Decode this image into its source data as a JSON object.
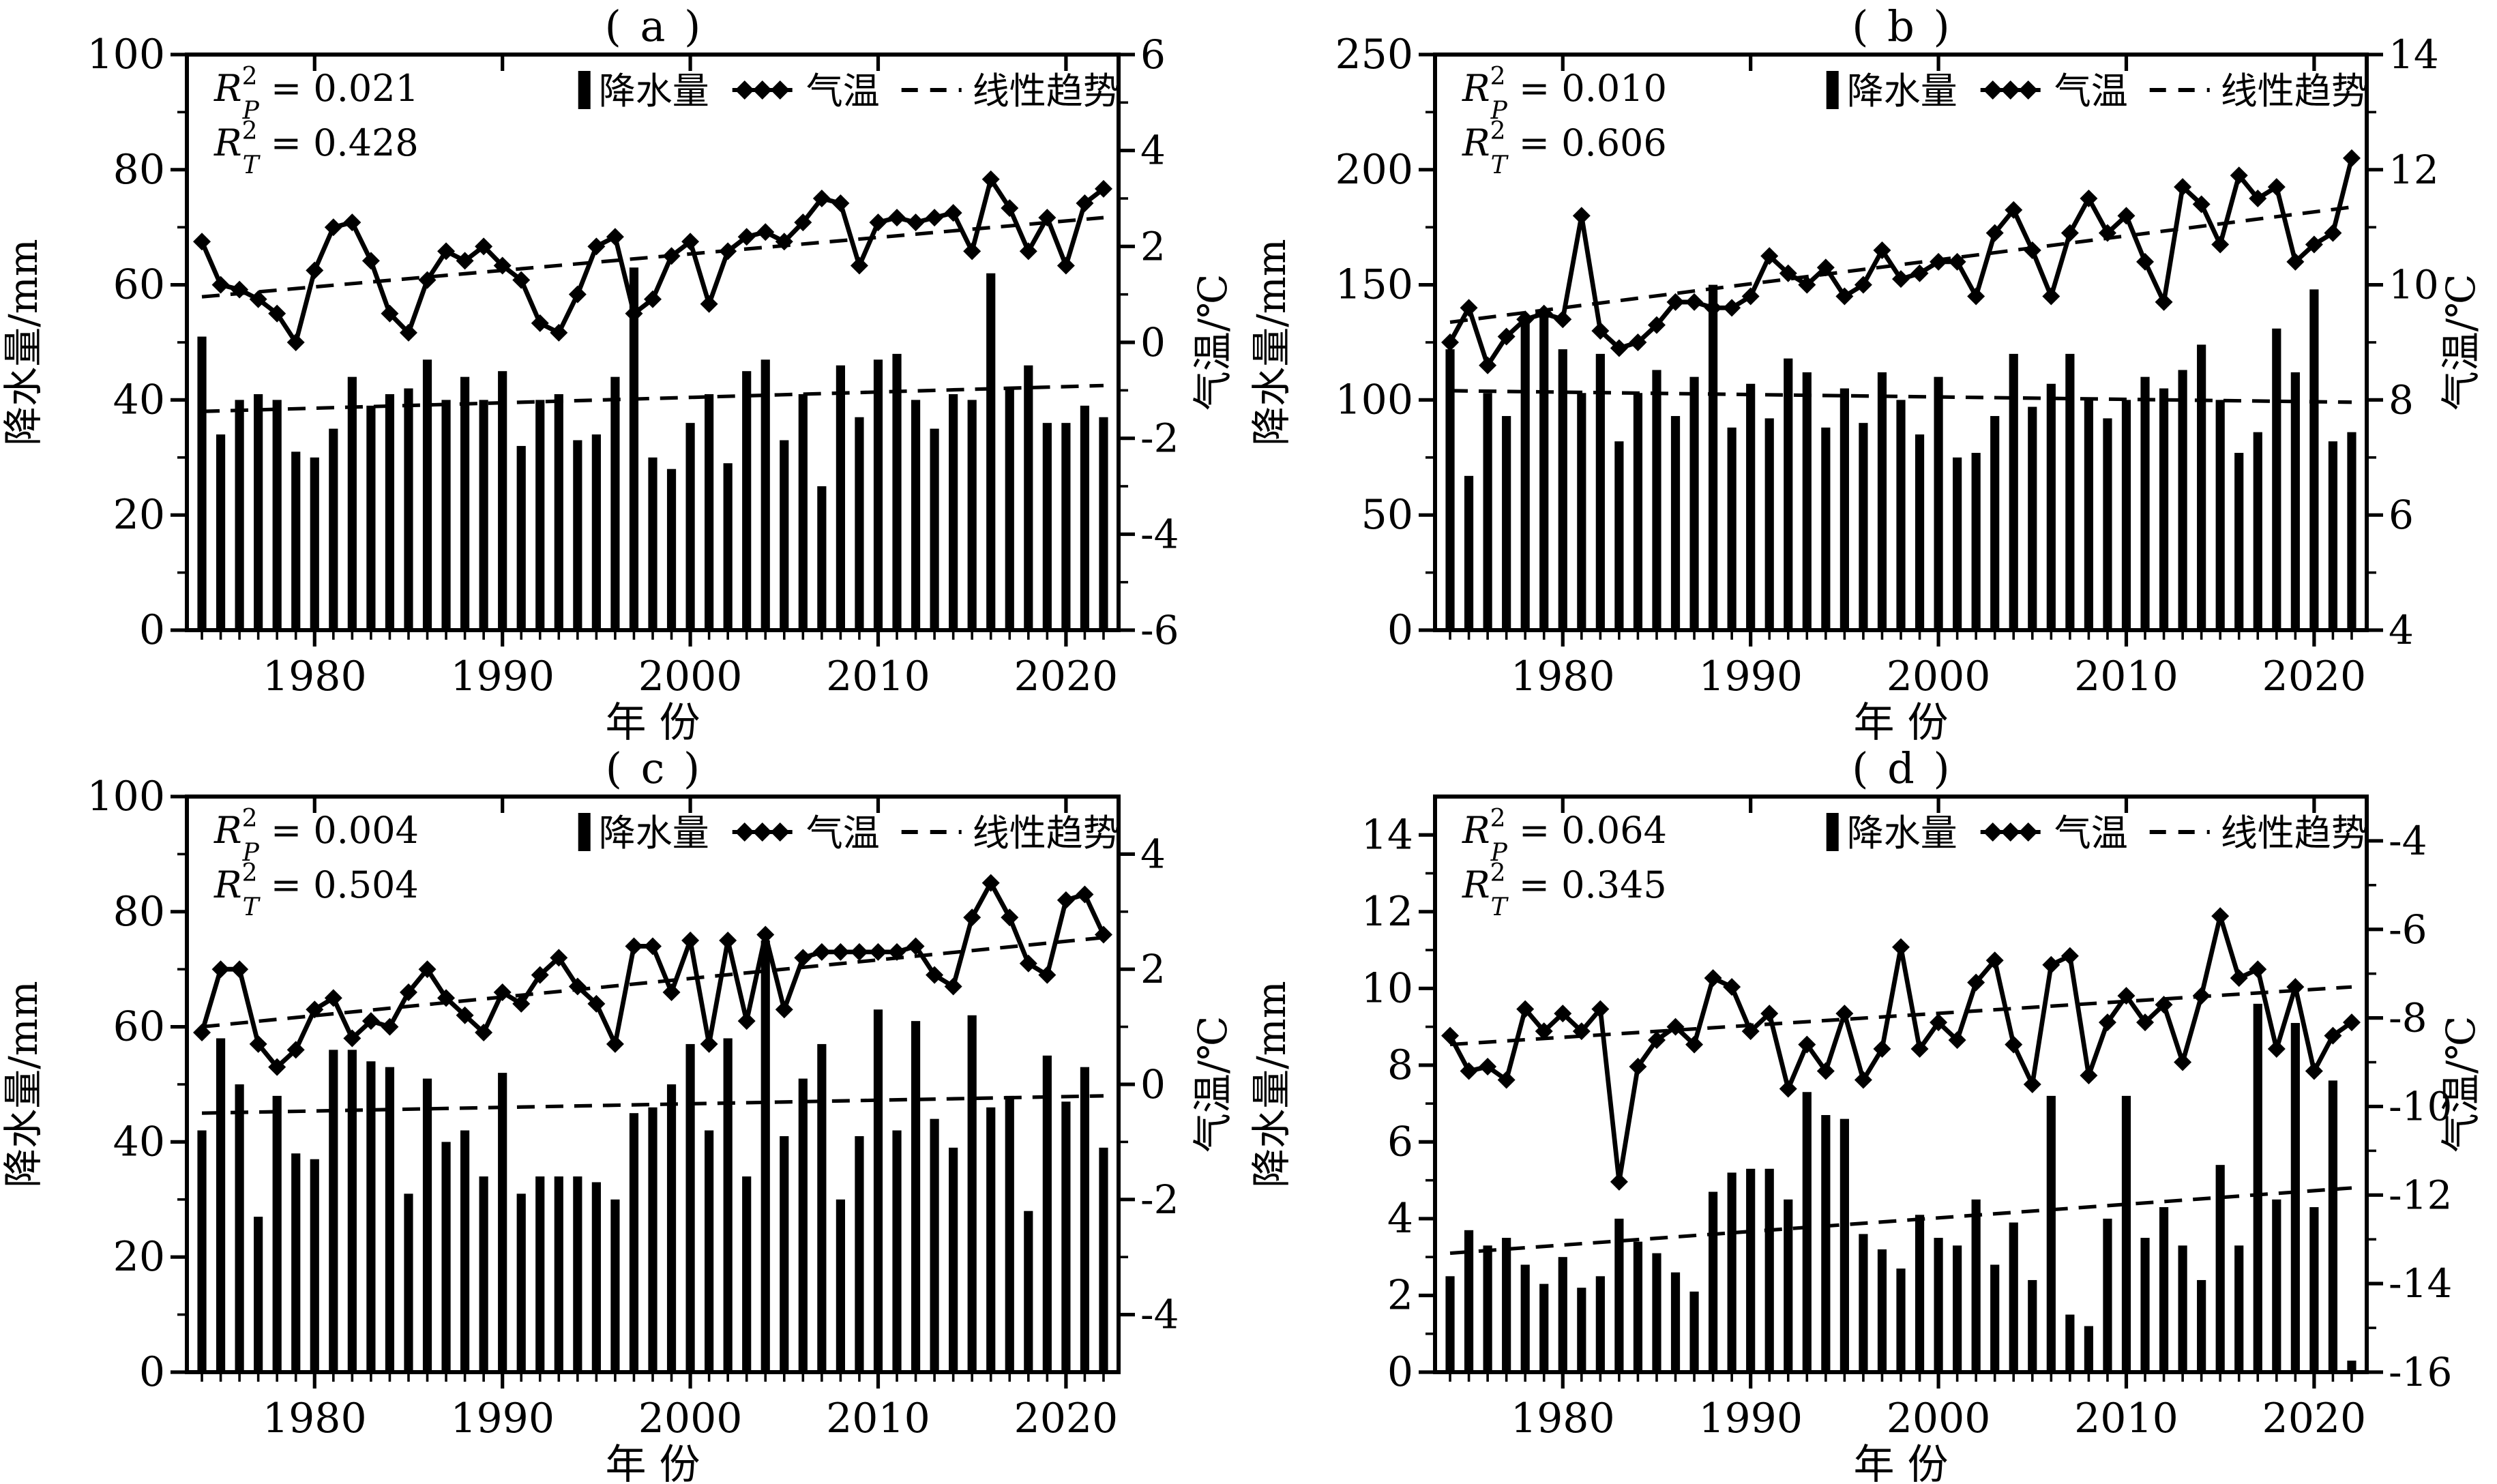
{
  "figure": {
    "background": "#ffffff",
    "ink": "#000000"
  },
  "axes": {
    "x_label": "年  份",
    "y_left_label": "降水量/mm",
    "y_right_label": "气温/℃",
    "x_major_ticks": [
      1980,
      1990,
      2000,
      2010,
      2020
    ],
    "x_range": [
      1973.2,
      2022.8
    ],
    "years_start": 1974,
    "years_end": 2022
  },
  "legend": {
    "precip_label": "降水量",
    "temp_label": "气温",
    "trend_label": "线性趋势"
  },
  "r2": {
    "symbol": "R",
    "sup": "2",
    "precip_sub": "P",
    "temp_sub": "T",
    "equals": "="
  },
  "chart_data": [
    {
      "id": "a",
      "type": "bar+line",
      "title": "( a )",
      "r2_precip": "0.021",
      "r2_temp": "0.428",
      "left_axis": {
        "min": 0,
        "max": 100,
        "major": 20,
        "minor": 10
      },
      "right_axis": {
        "min": -6,
        "max": 6,
        "major": 2,
        "minor": 1
      },
      "precip_mm": [
        51,
        34,
        40,
        41,
        40,
        31,
        30,
        35,
        44,
        39,
        41,
        42,
        47,
        40,
        44,
        40,
        45,
        32,
        40,
        41,
        33,
        34,
        44,
        63,
        30,
        28,
        36,
        41,
        29,
        45,
        47,
        33,
        41,
        25,
        46,
        37,
        47,
        48,
        40,
        35,
        41,
        40,
        62,
        42,
        46,
        36,
        36,
        39,
        37
      ],
      "temp_c": [
        2.1,
        1.2,
        1.1,
        0.9,
        0.6,
        0.0,
        1.5,
        2.4,
        2.5,
        1.7,
        0.6,
        0.2,
        1.3,
        1.9,
        1.7,
        2.0,
        1.6,
        1.3,
        0.4,
        0.2,
        1.0,
        2.0,
        2.2,
        0.6,
        0.9,
        1.8,
        2.1,
        0.8,
        1.9,
        2.2,
        2.3,
        2.1,
        2.5,
        3.0,
        2.9,
        1.6,
        2.5,
        2.6,
        2.5,
        2.6,
        2.7,
        1.9,
        3.4,
        2.8,
        1.9,
        2.6,
        1.6,
        2.9,
        3.2
      ],
      "precip_trend": {
        "start": 38,
        "end": 42.5
      },
      "temp_trend": {
        "start": 0.95,
        "end": 2.6
      }
    },
    {
      "id": "b",
      "type": "bar+line",
      "title": "( b )",
      "r2_precip": "0.010",
      "r2_temp": "0.606",
      "left_axis": {
        "min": 0,
        "max": 250,
        "major": 50,
        "minor": 25
      },
      "right_axis": {
        "min": 4,
        "max": 14,
        "major": 2,
        "minor": 1
      },
      "precip_mm": [
        122,
        67,
        103,
        93,
        135,
        137,
        122,
        103,
        120,
        82,
        103,
        113,
        93,
        110,
        150,
        88,
        107,
        92,
        118,
        112,
        88,
        105,
        90,
        112,
        100,
        85,
        110,
        75,
        77,
        93,
        120,
        97,
        107,
        120,
        100,
        92,
        100,
        110,
        105,
        113,
        124,
        100,
        77,
        86,
        131,
        112,
        148,
        82,
        86
      ],
      "temp_c": [
        9.0,
        9.6,
        8.6,
        9.1,
        9.4,
        9.5,
        9.4,
        11.2,
        9.2,
        8.9,
        9.0,
        9.3,
        9.7,
        9.7,
        9.6,
        9.6,
        9.8,
        10.5,
        10.2,
        10.0,
        10.3,
        9.8,
        10.0,
        10.6,
        10.1,
        10.2,
        10.4,
        10.4,
        9.8,
        10.9,
        11.3,
        10.6,
        9.8,
        10.9,
        11.5,
        10.9,
        11.2,
        10.4,
        9.7,
        11.7,
        11.4,
        10.7,
        11.9,
        11.5,
        11.7,
        10.4,
        10.7,
        10.9,
        12.2
      ],
      "precip_trend": {
        "start": 104,
        "end": 99
      },
      "temp_trend": {
        "start": 9.35,
        "end": 11.35
      }
    },
    {
      "id": "c",
      "type": "bar+line",
      "title": "( c )",
      "r2_precip": "0.004",
      "r2_temp": "0.504",
      "left_axis": {
        "min": 0,
        "max": 100,
        "major": 20,
        "minor": 10
      },
      "right_axis": {
        "min": -5,
        "max": 5,
        "major": 2,
        "minor": 1
      },
      "precip_mm": [
        42,
        58,
        50,
        27,
        48,
        38,
        37,
        56,
        56,
        54,
        53,
        31,
        51,
        40,
        42,
        34,
        52,
        31,
        34,
        34,
        34,
        33,
        30,
        45,
        46,
        50,
        57,
        42,
        58,
        34,
        75,
        41,
        51,
        57,
        30,
        41,
        63,
        42,
        61,
        44,
        39,
        62,
        46,
        48,
        28,
        55,
        47,
        53,
        39
      ],
      "temp_c": [
        0.9,
        2.0,
        2.0,
        0.7,
        0.3,
        0.6,
        1.3,
        1.5,
        0.8,
        1.1,
        1.0,
        1.6,
        2.0,
        1.5,
        1.2,
        0.9,
        1.6,
        1.4,
        1.9,
        2.2,
        1.7,
        1.4,
        0.7,
        2.4,
        2.4,
        1.6,
        2.5,
        0.7,
        2.5,
        1.1,
        2.6,
        1.3,
        2.2,
        2.3,
        2.3,
        2.3,
        2.3,
        2.3,
        2.4,
        1.9,
        1.7,
        2.9,
        3.5,
        2.9,
        2.1,
        1.9,
        3.2,
        3.3,
        2.6
      ],
      "precip_trend": {
        "start": 45,
        "end": 48
      },
      "temp_trend": {
        "start": 1.0,
        "end": 2.55
      }
    },
    {
      "id": "d",
      "type": "bar+line",
      "title": "( d )",
      "r2_precip": "0.064",
      "r2_temp": "0.345",
      "left_axis": {
        "min": 0,
        "max": 15,
        "major": 2,
        "minor": 1
      },
      "right_axis": {
        "min": -16,
        "max": -3,
        "major": 2,
        "minor": 1
      },
      "precip_mm": [
        2.5,
        3.7,
        3.3,
        3.5,
        2.8,
        2.3,
        3.0,
        2.2,
        2.5,
        4.0,
        3.4,
        3.1,
        2.6,
        2.1,
        4.7,
        5.2,
        5.3,
        5.3,
        4.5,
        7.3,
        6.7,
        6.6,
        3.6,
        3.2,
        2.7,
        4.1,
        3.5,
        3.3,
        4.5,
        2.8,
        3.9,
        2.4,
        7.2,
        1.5,
        1.2,
        4.0,
        7.2,
        3.5,
        4.3,
        3.3,
        2.4,
        5.4,
        3.3,
        9.6,
        4.5,
        9.1,
        4.3,
        7.6,
        0.3
      ],
      "temp_c": [
        -8.4,
        -9.2,
        -9.1,
        -9.4,
        -7.8,
        -8.3,
        -7.9,
        -8.3,
        -7.8,
        -11.7,
        -9.1,
        -8.5,
        -8.2,
        -8.6,
        -7.1,
        -7.3,
        -8.3,
        -7.9,
        -9.6,
        -8.6,
        -9.2,
        -7.9,
        -9.4,
        -8.7,
        -6.4,
        -8.7,
        -8.1,
        -8.5,
        -7.2,
        -6.7,
        -8.6,
        -9.5,
        -6.8,
        -6.6,
        -9.3,
        -8.1,
        -7.5,
        -8.1,
        -7.7,
        -9.0,
        -7.5,
        -5.7,
        -7.1,
        -6.9,
        -8.7,
        -7.3,
        -9.2,
        -8.4,
        -8.1
      ],
      "precip_trend": {
        "start": 3.1,
        "end": 4.8
      },
      "temp_trend": {
        "start": -8.6,
        "end": -7.3
      }
    }
  ]
}
